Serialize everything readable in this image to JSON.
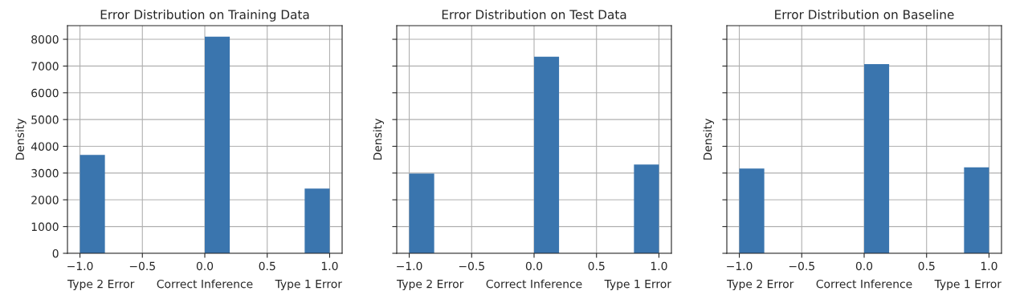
{
  "chart_data": [
    {
      "type": "histogram",
      "title": "Error Distribution on Training Data",
      "ylabel": "Density",
      "bins": [
        -1.0,
        -0.8,
        -0.6,
        -0.4,
        -0.2,
        0.0,
        0.2,
        0.4,
        0.6,
        0.8,
        1.0
      ],
      "values": [
        3680,
        0,
        0,
        0,
        0,
        8100,
        0,
        0,
        0,
        2420
      ],
      "color": "#3a75ae",
      "xlim": [
        -1.1,
        1.1
      ],
      "ylim": [
        0,
        8510
      ],
      "xticks": [
        {
          "value": -1.0,
          "label": "−1.0"
        },
        {
          "value": -0.5,
          "label": "−0.5"
        },
        {
          "value": 0.0,
          "label": "0.0"
        },
        {
          "value": 0.5,
          "label": "0.5"
        },
        {
          "value": 1.0,
          "label": "1.0"
        }
      ],
      "yticks": [
        0,
        1000,
        2000,
        3000,
        4000,
        5000,
        6000,
        7000,
        8000
      ],
      "grid": true,
      "annotations": [
        "Type 2 Error",
        "Correct Inference",
        "Type 1 Error"
      ]
    },
    {
      "type": "histogram",
      "title": "Error Distribution on Test Data",
      "ylabel": "Density",
      "bins": [
        -1.0,
        -0.8,
        -0.6,
        -0.4,
        -0.2,
        0.0,
        0.2,
        0.4,
        0.6,
        0.8,
        1.0
      ],
      "values": [
        2980,
        0,
        0,
        0,
        0,
        7350,
        0,
        0,
        0,
        3320
      ],
      "color": "#3a75ae",
      "xlim": [
        -1.1,
        1.1
      ],
      "ylim": [
        0,
        8510
      ],
      "xticks": [
        {
          "value": -1.0,
          "label": "−1.0"
        },
        {
          "value": -0.5,
          "label": "−0.5"
        },
        {
          "value": 0.0,
          "label": "0.0"
        },
        {
          "value": 0.5,
          "label": "0.5"
        },
        {
          "value": 1.0,
          "label": "1.0"
        }
      ],
      "yticks": [
        0,
        1000,
        2000,
        3000,
        4000,
        5000,
        6000,
        7000,
        8000
      ],
      "tick_labels": "x",
      "grid": true,
      "annotations": [
        "Type 2 Error",
        "Correct Inference",
        "Type 1 Error"
      ]
    },
    {
      "type": "histogram",
      "title": "Error Distribution on Baseline",
      "ylabel": "Density",
      "bins": [
        -1.0,
        -0.8,
        -0.6,
        -0.4,
        -0.2,
        0.0,
        0.2,
        0.4,
        0.6,
        0.8,
        1.0
      ],
      "values": [
        3170,
        0,
        0,
        0,
        0,
        7070,
        0,
        0,
        0,
        3210
      ],
      "color": "#3a75ae",
      "xlim": [
        -1.1,
        1.1
      ],
      "ylim": [
        0,
        8510
      ],
      "xticks": [
        {
          "value": -1.0,
          "label": "−1.0"
        },
        {
          "value": -0.5,
          "label": "−0.5"
        },
        {
          "value": 0.0,
          "label": "0.0"
        },
        {
          "value": 0.5,
          "label": "0.5"
        },
        {
          "value": 1.0,
          "label": "1.0"
        }
      ],
      "yticks": [
        0,
        1000,
        2000,
        3000,
        4000,
        5000,
        6000,
        7000,
        8000
      ],
      "tick_labels": "x",
      "grid": true,
      "annotations": [
        "Type 2 Error",
        "Correct Inference",
        "Type 1 Error"
      ]
    }
  ]
}
